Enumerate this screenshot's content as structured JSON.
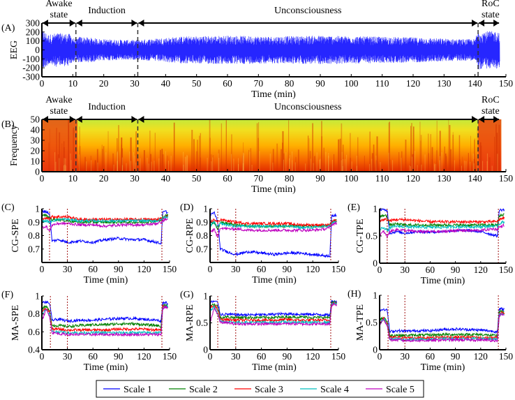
{
  "colors": {
    "scale1": "#0000ff",
    "scale2": "#008000",
    "scale3": "#ff0000",
    "scale4": "#00bfbf",
    "scale5": "#bf00bf",
    "eeg": "#0000ff",
    "marker": "#a01010"
  },
  "legend": [
    "Scale 1",
    "Scale 2",
    "Scale 3",
    "Scale 4",
    "Scale 5"
  ],
  "phases": {
    "awake_1": "Awake",
    "awake_2": "state",
    "induction": "Induction",
    "unconsciousness": "Unconsciousness",
    "roc_1": "RoC",
    "roc_2": "state"
  },
  "chart_data": [
    {
      "panel": "(A)",
      "type": "line",
      "ylabel": "EEG",
      "xlabel": "Time (min)",
      "xlim": [
        0,
        150
      ],
      "ylim": [
        -300,
        300
      ],
      "xticks": [
        0,
        10,
        20,
        30,
        40,
        50,
        60,
        70,
        80,
        90,
        100,
        110,
        120,
        130,
        140,
        150
      ],
      "yticks": [
        300,
        200,
        100,
        0,
        -100,
        -200,
        -300
      ],
      "phase_boundaries": [
        11,
        31,
        141
      ],
      "envelope": {
        "t": [
          0,
          2,
          5,
          9,
          11,
          12,
          20,
          30,
          45,
          60,
          75,
          90,
          105,
          120,
          135,
          140,
          141,
          143,
          148
        ],
        "amplitude": [
          230,
          170,
          190,
          180,
          110,
          150,
          120,
          110,
          150,
          160,
          150,
          160,
          150,
          140,
          120,
          120,
          220,
          210,
          210
        ]
      }
    },
    {
      "panel": "(B)",
      "type": "heatmap",
      "ylabel": "Frequency",
      "xlabel": "Time (min)",
      "xlim": [
        0,
        150
      ],
      "ylim": [
        0,
        50
      ],
      "xticks": [
        0,
        10,
        20,
        30,
        40,
        50,
        60,
        70,
        80,
        90,
        100,
        110,
        120,
        130,
        140,
        150
      ],
      "yticks": [
        50,
        40,
        30,
        20,
        10,
        0
      ],
      "phase_boundaries": [
        11,
        31,
        141
      ],
      "colormap": "red (high power, low frequency) to yellow-green (low power, high frequency)"
    },
    {
      "panel": "(C)",
      "type": "line",
      "ylabel": "CG-SPE",
      "xlabel": "Time (min)",
      "xlim": [
        0,
        150
      ],
      "ylim": [
        0.6,
        1
      ],
      "yticks": [
        "0.7",
        "0.8",
        "0.9",
        "1"
      ],
      "xticks": [
        0,
        30,
        60,
        90,
        120,
        150
      ],
      "markers": [
        9,
        30,
        141
      ],
      "x": [
        0,
        5,
        9,
        12,
        20,
        30,
        45,
        60,
        75,
        90,
        105,
        120,
        135,
        140,
        142,
        145,
        148
      ],
      "series": [
        {
          "name": "Scale 1",
          "values": [
            0.98,
            0.98,
            0.96,
            0.76,
            0.77,
            0.75,
            0.76,
            0.75,
            0.77,
            0.78,
            0.77,
            0.77,
            0.75,
            0.74,
            0.97,
            0.98,
            0.97
          ]
        },
        {
          "name": "Scale 2",
          "values": [
            0.95,
            0.95,
            0.93,
            0.92,
            0.92,
            0.91,
            0.9,
            0.9,
            0.9,
            0.9,
            0.9,
            0.9,
            0.91,
            0.91,
            0.94,
            0.95,
            0.95
          ]
        },
        {
          "name": "Scale 3",
          "values": [
            0.92,
            0.93,
            0.93,
            0.94,
            0.94,
            0.94,
            0.92,
            0.92,
            0.92,
            0.92,
            0.92,
            0.92,
            0.92,
            0.93,
            0.93,
            0.94,
            0.94
          ]
        },
        {
          "name": "Scale 4",
          "values": [
            0.9,
            0.91,
            0.9,
            0.91,
            0.92,
            0.92,
            0.91,
            0.91,
            0.91,
            0.91,
            0.91,
            0.91,
            0.91,
            0.92,
            0.93,
            0.94,
            0.94
          ]
        },
        {
          "name": "Scale 5",
          "values": [
            0.86,
            0.87,
            0.83,
            0.88,
            0.89,
            0.89,
            0.88,
            0.88,
            0.87,
            0.88,
            0.88,
            0.88,
            0.89,
            0.9,
            0.91,
            0.92,
            0.92
          ]
        }
      ]
    },
    {
      "panel": "(D)",
      "type": "line",
      "ylabel": "CG-RPE",
      "xlabel": "Time (min)",
      "xlim": [
        0,
        150
      ],
      "ylim": [
        0.6,
        1
      ],
      "yticks": [
        "0.7",
        "0.8",
        "0.9",
        "1"
      ],
      "xticks": [
        0,
        30,
        60,
        90,
        120,
        150
      ],
      "markers": [
        9,
        30,
        141
      ],
      "x": [
        0,
        5,
        9,
        12,
        20,
        30,
        45,
        60,
        75,
        90,
        105,
        120,
        135,
        140,
        142,
        145,
        148
      ],
      "series": [
        {
          "name": "Scale 1",
          "values": [
            0.95,
            0.97,
            0.9,
            0.7,
            0.68,
            0.66,
            0.68,
            0.67,
            0.66,
            0.67,
            0.67,
            0.66,
            0.65,
            0.65,
            0.94,
            0.95,
            0.95
          ]
        },
        {
          "name": "Scale 2",
          "values": [
            0.88,
            0.9,
            0.85,
            0.9,
            0.89,
            0.88,
            0.87,
            0.87,
            0.87,
            0.87,
            0.87,
            0.87,
            0.87,
            0.88,
            0.9,
            0.91,
            0.91
          ]
        },
        {
          "name": "Scale 3",
          "values": [
            0.9,
            0.92,
            0.9,
            0.92,
            0.91,
            0.9,
            0.89,
            0.89,
            0.89,
            0.89,
            0.88,
            0.88,
            0.88,
            0.88,
            0.9,
            0.91,
            0.91
          ]
        },
        {
          "name": "Scale 4",
          "values": [
            0.87,
            0.9,
            0.86,
            0.89,
            0.88,
            0.87,
            0.87,
            0.87,
            0.87,
            0.87,
            0.86,
            0.86,
            0.87,
            0.87,
            0.89,
            0.9,
            0.9
          ]
        },
        {
          "name": "Scale 5",
          "values": [
            0.82,
            0.85,
            0.78,
            0.86,
            0.85,
            0.85,
            0.84,
            0.84,
            0.84,
            0.84,
            0.84,
            0.84,
            0.85,
            0.86,
            0.88,
            0.89,
            0.89
          ]
        }
      ]
    },
    {
      "panel": "(E)",
      "type": "line",
      "ylabel": "CG-TPE",
      "xlabel": "Time (min)",
      "xlim": [
        0,
        150
      ],
      "ylim": [
        0,
        1
      ],
      "yticks": [
        "0",
        "0.5",
        "1"
      ],
      "xticks": [
        0,
        30,
        60,
        90,
        120,
        150
      ],
      "markers": [
        9,
        30,
        141
      ],
      "x": [
        0,
        5,
        9,
        12,
        20,
        30,
        45,
        60,
        75,
        90,
        105,
        120,
        135,
        140,
        142,
        145,
        148
      ],
      "series": [
        {
          "name": "Scale 1",
          "values": [
            0.98,
            0.98,
            0.97,
            0.55,
            0.58,
            0.55,
            0.58,
            0.57,
            0.58,
            0.6,
            0.6,
            0.58,
            0.52,
            0.5,
            0.97,
            0.98,
            0.98
          ]
        },
        {
          "name": "Scale 2",
          "values": [
            0.85,
            0.88,
            0.86,
            0.7,
            0.72,
            0.7,
            0.7,
            0.7,
            0.7,
            0.7,
            0.7,
            0.7,
            0.7,
            0.7,
            0.86,
            0.88,
            0.9
          ]
        },
        {
          "name": "Scale 3",
          "values": [
            0.78,
            0.8,
            0.8,
            0.78,
            0.8,
            0.8,
            0.78,
            0.76,
            0.76,
            0.76,
            0.76,
            0.76,
            0.76,
            0.77,
            0.8,
            0.82,
            0.83
          ]
        },
        {
          "name": "Scale 4",
          "values": [
            0.62,
            0.66,
            0.6,
            0.65,
            0.68,
            0.67,
            0.66,
            0.66,
            0.66,
            0.67,
            0.67,
            0.67,
            0.68,
            0.68,
            0.72,
            0.75,
            0.76
          ]
        },
        {
          "name": "Scale 5",
          "values": [
            0.52,
            0.58,
            0.48,
            0.58,
            0.62,
            0.6,
            0.58,
            0.58,
            0.58,
            0.6,
            0.6,
            0.6,
            0.63,
            0.62,
            0.66,
            0.68,
            0.7
          ]
        }
      ]
    },
    {
      "panel": "(F)",
      "type": "line",
      "ylabel": "MA-SPE",
      "xlabel": "Time (min)",
      "xlim": [
        0,
        150
      ],
      "ylim": [
        0.4,
        1
      ],
      "yticks": [
        "0.4",
        "0.6",
        "0.8",
        "1"
      ],
      "xticks": [
        0,
        30,
        60,
        90,
        120,
        150
      ],
      "markers": [
        10,
        30,
        141
      ],
      "x": [
        0,
        5,
        9,
        12,
        20,
        30,
        45,
        60,
        75,
        90,
        105,
        120,
        135,
        140,
        142,
        145,
        148
      ],
      "series": [
        {
          "name": "Scale 1",
          "values": [
            0.93,
            0.93,
            0.92,
            0.73,
            0.74,
            0.72,
            0.73,
            0.73,
            0.74,
            0.75,
            0.75,
            0.74,
            0.73,
            0.72,
            0.92,
            0.93,
            0.92
          ]
        },
        {
          "name": "Scale 2",
          "values": [
            0.86,
            0.88,
            0.84,
            0.67,
            0.67,
            0.66,
            0.67,
            0.68,
            0.68,
            0.69,
            0.69,
            0.68,
            0.67,
            0.66,
            0.89,
            0.9,
            0.89
          ]
        },
        {
          "name": "Scale 3",
          "values": [
            0.82,
            0.86,
            0.82,
            0.63,
            0.63,
            0.62,
            0.62,
            0.62,
            0.62,
            0.63,
            0.63,
            0.63,
            0.62,
            0.62,
            0.88,
            0.89,
            0.88
          ]
        },
        {
          "name": "Scale 4",
          "values": [
            0.8,
            0.85,
            0.8,
            0.6,
            0.6,
            0.59,
            0.59,
            0.59,
            0.59,
            0.59,
            0.59,
            0.59,
            0.59,
            0.59,
            0.87,
            0.88,
            0.88
          ]
        },
        {
          "name": "Scale 5",
          "values": [
            0.72,
            0.85,
            0.78,
            0.59,
            0.58,
            0.57,
            0.57,
            0.57,
            0.57,
            0.57,
            0.57,
            0.57,
            0.57,
            0.57,
            0.86,
            0.88,
            0.87
          ]
        }
      ]
    },
    {
      "panel": "(G)",
      "type": "line",
      "ylabel": "MA-RPE",
      "xlabel": "Time (min)",
      "xlim": [
        0,
        150
      ],
      "ylim": [
        0,
        1
      ],
      "yticks": [
        "0",
        "0.5",
        "1"
      ],
      "xticks": [
        0,
        30,
        60,
        90,
        120,
        150
      ],
      "markers": [
        9,
        30,
        141
      ],
      "x": [
        0,
        5,
        9,
        12,
        20,
        30,
        45,
        60,
        75,
        90,
        105,
        120,
        135,
        140,
        142,
        145,
        148
      ],
      "series": [
        {
          "name": "Scale 1",
          "values": [
            0.88,
            0.9,
            0.88,
            0.66,
            0.66,
            0.65,
            0.65,
            0.65,
            0.66,
            0.67,
            0.66,
            0.66,
            0.65,
            0.64,
            0.9,
            0.9,
            0.89
          ]
        },
        {
          "name": "Scale 2",
          "values": [
            0.82,
            0.85,
            0.8,
            0.6,
            0.61,
            0.6,
            0.6,
            0.6,
            0.6,
            0.61,
            0.61,
            0.6,
            0.6,
            0.6,
            0.87,
            0.88,
            0.87
          ]
        },
        {
          "name": "Scale 3",
          "values": [
            0.78,
            0.82,
            0.75,
            0.56,
            0.56,
            0.55,
            0.55,
            0.55,
            0.55,
            0.56,
            0.55,
            0.55,
            0.55,
            0.55,
            0.85,
            0.87,
            0.86
          ]
        },
        {
          "name": "Scale 4",
          "values": [
            0.72,
            0.8,
            0.7,
            0.53,
            0.52,
            0.51,
            0.51,
            0.51,
            0.51,
            0.52,
            0.51,
            0.51,
            0.51,
            0.51,
            0.84,
            0.86,
            0.85
          ]
        },
        {
          "name": "Scale 5",
          "values": [
            0.5,
            0.78,
            0.65,
            0.51,
            0.5,
            0.48,
            0.48,
            0.48,
            0.48,
            0.49,
            0.48,
            0.48,
            0.48,
            0.48,
            0.83,
            0.85,
            0.84
          ]
        }
      ]
    },
    {
      "panel": "(H)",
      "type": "line",
      "ylabel": "MA-TPE",
      "xlabel": "Time (min)",
      "xlim": [
        0,
        150
      ],
      "ylim": [
        0,
        1
      ],
      "yticks": [
        "0",
        "0.5",
        "1"
      ],
      "xticks": [
        0,
        30,
        60,
        90,
        120,
        150
      ],
      "markers": [
        10,
        30,
        141
      ],
      "x": [
        0,
        5,
        9,
        12,
        20,
        30,
        45,
        60,
        75,
        90,
        105,
        120,
        135,
        140,
        142,
        145,
        148
      ],
      "series": [
        {
          "name": "Scale 1",
          "values": [
            0.72,
            0.75,
            0.72,
            0.33,
            0.35,
            0.34,
            0.35,
            0.35,
            0.37,
            0.38,
            0.37,
            0.36,
            0.34,
            0.33,
            0.74,
            0.75,
            0.74
          ]
        },
        {
          "name": "Scale 2",
          "values": [
            0.55,
            0.6,
            0.52,
            0.26,
            0.27,
            0.26,
            0.27,
            0.27,
            0.28,
            0.28,
            0.28,
            0.28,
            0.26,
            0.26,
            0.7,
            0.7,
            0.68
          ]
        },
        {
          "name": "Scale 3",
          "values": [
            0.5,
            0.58,
            0.48,
            0.22,
            0.23,
            0.22,
            0.22,
            0.22,
            0.23,
            0.23,
            0.23,
            0.22,
            0.22,
            0.22,
            0.66,
            0.68,
            0.66
          ]
        },
        {
          "name": "Scale 4",
          "values": [
            0.48,
            0.57,
            0.46,
            0.2,
            0.2,
            0.19,
            0.19,
            0.19,
            0.2,
            0.2,
            0.2,
            0.2,
            0.19,
            0.19,
            0.64,
            0.66,
            0.64
          ]
        },
        {
          "name": "Scale 5",
          "values": [
            0.46,
            0.56,
            0.44,
            0.18,
            0.18,
            0.17,
            0.17,
            0.17,
            0.18,
            0.18,
            0.18,
            0.18,
            0.17,
            0.17,
            0.62,
            0.65,
            0.63
          ]
        }
      ]
    }
  ]
}
